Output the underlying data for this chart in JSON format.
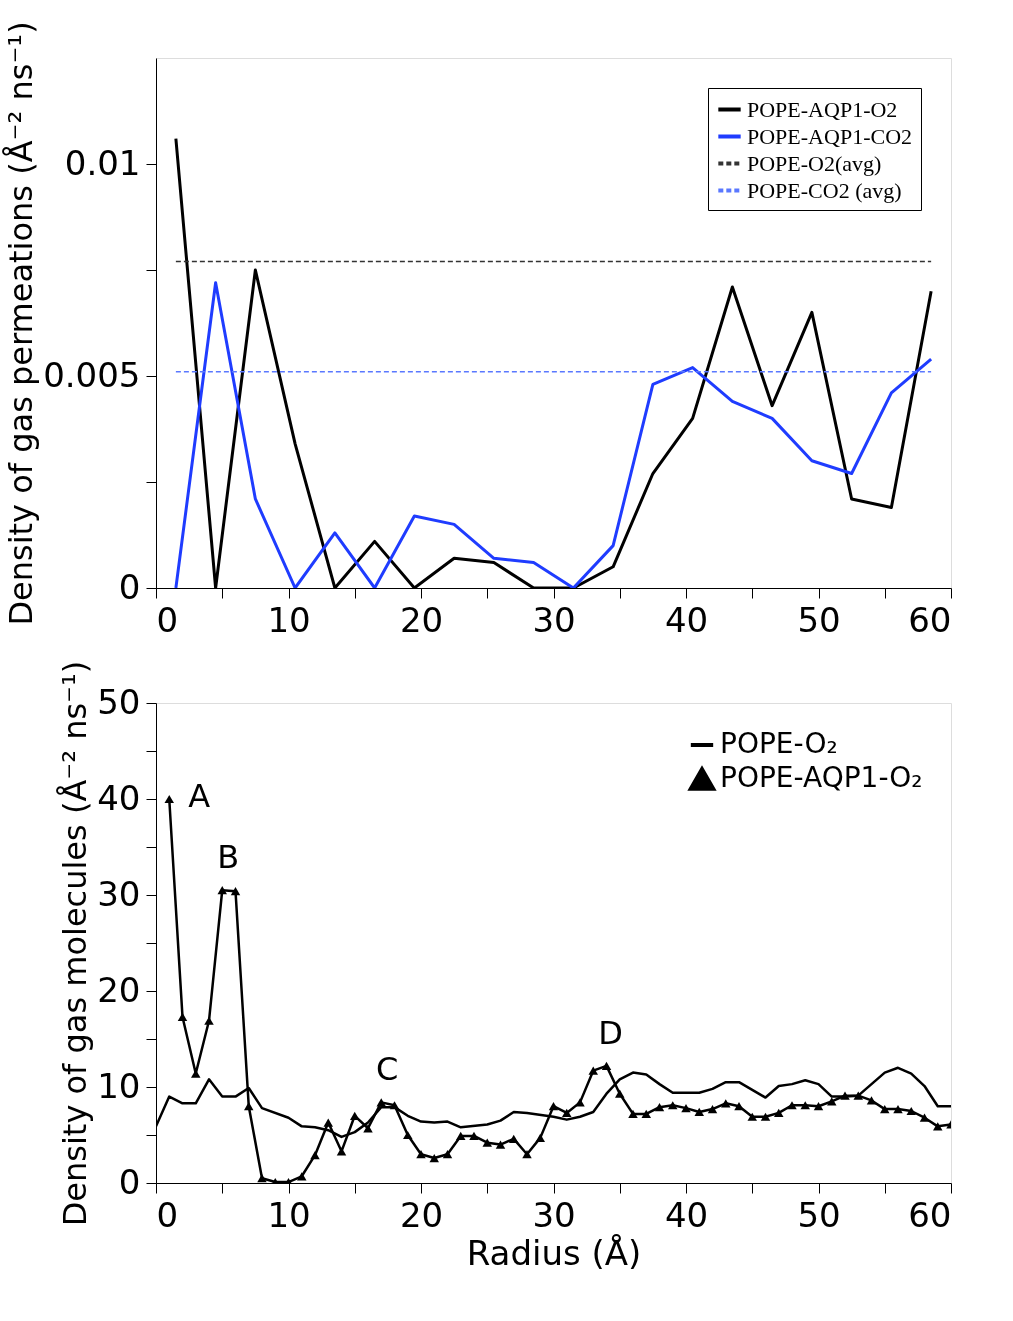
{
  "chart_data": [
    {
      "type": "line",
      "ylabel": "Density of gas permeations (Å⁻² ns⁻¹)",
      "xlim": [
        0,
        60
      ],
      "xticks": [
        0,
        {
          "value": 5,
          "label": null
        },
        10,
        {
          "value": 15,
          "label": null
        },
        20,
        {
          "value": 25,
          "label": null
        },
        30,
        {
          "value": 35,
          "label": null
        },
        40,
        {
          "value": 45,
          "label": null
        },
        50,
        {
          "value": 55,
          "label": null
        },
        60
      ],
      "ylim": [
        0,
        0.0125
      ],
      "yticks": [
        0,
        {
          "value": 0.0025,
          "label": null
        },
        0.005,
        {
          "value": 0.0075,
          "label": null
        },
        0.01
      ],
      "legend": "top right",
      "grid": false,
      "x": [
        1.5,
        4.5,
        7.5,
        10.5,
        13.5,
        16.5,
        19.5,
        22.5,
        25.5,
        28.5,
        31.5,
        34.5,
        37.5,
        40.5,
        43.5,
        46.5,
        49.5,
        52.5,
        55.5,
        58.5
      ],
      "series": [
        {
          "name": "POPE-AQP1-O2",
          "color": "#000000",
          "line_style": "solid",
          "marker": "none",
          "values": [
            0.0106,
            0,
            0.0075,
            0.0034,
            0,
            0.0011,
            0,
            0.0007,
            0.0006,
            0,
            0,
            0.0005,
            0.0027,
            0.004,
            0.0071,
            0.0043,
            0.0065,
            0.0021,
            0.0019,
            0.007
          ]
        },
        {
          "name": "POPE-AQP1-CO2",
          "color": "#1f3cff",
          "line_style": "solid",
          "marker": "none",
          "values": [
            0,
            0.0072,
            0.0021,
            0,
            0.0013,
            0,
            0.0017,
            0.0015,
            0.0007,
            0.0006,
            0,
            0.001,
            0.0048,
            0.0052,
            0.0044,
            0.004,
            0.003,
            0.0027,
            0.0046,
            0.0054
          ]
        },
        {
          "name": "POPE-O2(avg)",
          "color": "#333333",
          "line_style": "dashed",
          "marker": "none",
          "x": [
            1.5,
            58.5
          ],
          "values": [
            0.0077,
            0.0077
          ]
        },
        {
          "name": "POPE-CO2 (avg)",
          "color": "#5a78ff",
          "line_style": "dashed",
          "marker": "none",
          "x": [
            1.5,
            58.5
          ],
          "values": [
            0.0051,
            0.0051
          ]
        }
      ]
    },
    {
      "type": "line",
      "xlabel": "Radius (Å)",
      "ylabel": "Density of gas molecules (Å⁻² ns⁻¹)",
      "xlim": [
        0,
        60
      ],
      "xticks": [
        0,
        {
          "value": 5,
          "label": null
        },
        10,
        {
          "value": 15,
          "label": null
        },
        20,
        {
          "value": 25,
          "label": null
        },
        30,
        {
          "value": 35,
          "label": null
        },
        40,
        {
          "value": 45,
          "label": null
        },
        50,
        {
          "value": 55,
          "label": null
        },
        60
      ],
      "ylim": [
        0,
        50
      ],
      "yticks": [
        0,
        {
          "value": 5,
          "label": null
        },
        10,
        {
          "value": 15,
          "label": null
        },
        20,
        {
          "value": 25,
          "label": null
        },
        30,
        {
          "value": 35,
          "label": null
        },
        40,
        {
          "value": 45,
          "label": null
        },
        50
      ],
      "legend": "top right",
      "grid": false,
      "annotations": [
        {
          "text": "A",
          "x": 1,
          "y": 40
        },
        {
          "text": "B",
          "x": 5,
          "y": 30.5
        },
        {
          "text": "C",
          "x": 17,
          "y": 8.4
        },
        {
          "text": "D",
          "x": 34,
          "y": 12.2
        }
      ],
      "series": [
        {
          "name": "POPE-O₂",
          "color": "#000000",
          "line_style": "solid",
          "marker": "none",
          "x": [
            0,
            1,
            2,
            3,
            4,
            5,
            6,
            7,
            8,
            10,
            11,
            12,
            13,
            14,
            15,
            16,
            17,
            18,
            19,
            20,
            21,
            22,
            23,
            25,
            26,
            27,
            28,
            30,
            31,
            32,
            33,
            34,
            35,
            36,
            37,
            38,
            39,
            41,
            42,
            43,
            44,
            45,
            46,
            47,
            48,
            49,
            50,
            51,
            52,
            53,
            54,
            55,
            56,
            57,
            58,
            59,
            60
          ],
          "values": [
            5.9,
            9.0,
            8.3,
            8.3,
            10.8,
            9.0,
            9.0,
            9.9,
            7.8,
            6.8,
            5.9,
            5.8,
            5.5,
            4.8,
            5.3,
            6.3,
            7.9,
            7.9,
            7.0,
            6.4,
            6.3,
            6.4,
            5.8,
            6.1,
            6.5,
            7.4,
            7.3,
            6.9,
            6.6,
            6.9,
            7.4,
            9.3,
            10.8,
            11.5,
            11.3,
            10.3,
            9.4,
            9.4,
            9.8,
            10.5,
            10.5,
            9.7,
            8.9,
            10.1,
            10.3,
            10.7,
            10.3,
            9.0,
            9.0,
            9.1,
            10.3,
            11.5,
            12.0,
            11.4,
            10.1,
            8.0,
            8.0
          ]
        },
        {
          "name": "POPE-AQP1-O₂",
          "color": "#000000",
          "line_style": "solid",
          "marker": "triangle",
          "x": [
            1,
            2,
            3,
            4,
            5,
            6,
            7,
            8,
            9,
            10,
            11,
            12,
            13,
            14,
            15,
            16,
            17,
            18,
            19,
            20,
            21,
            22,
            23,
            24,
            25,
            26,
            27,
            28,
            29,
            30,
            31,
            32,
            33,
            34,
            35,
            36,
            37,
            38,
            39,
            40,
            41,
            42,
            43,
            44,
            45,
            46,
            47,
            48,
            49,
            50,
            51,
            52,
            53,
            54,
            55,
            56,
            57,
            58,
            59,
            60
          ],
          "values": [
            40,
            17.3,
            11.4,
            16.9,
            30.5,
            30.4,
            8.0,
            0.5,
            0.1,
            0.1,
            0.7,
            2.9,
            6.3,
            3.3,
            7.0,
            5.7,
            8.4,
            8.1,
            5.0,
            3.0,
            2.6,
            3.0,
            4.9,
            4.9,
            4.2,
            4.0,
            4.6,
            3.0,
            4.7,
            8.0,
            7.3,
            8.4,
            11.7,
            12.2,
            9.3,
            7.2,
            7.2,
            7.9,
            8.1,
            7.8,
            7.4,
            7.7,
            8.3,
            8.0,
            6.9,
            6.9,
            7.3,
            8.1,
            8.1,
            8.0,
            8.5,
            9.1,
            9.1,
            8.6,
            7.7,
            7.7,
            7.5,
            6.8,
            5.9,
            6.1
          ]
        }
      ]
    }
  ]
}
